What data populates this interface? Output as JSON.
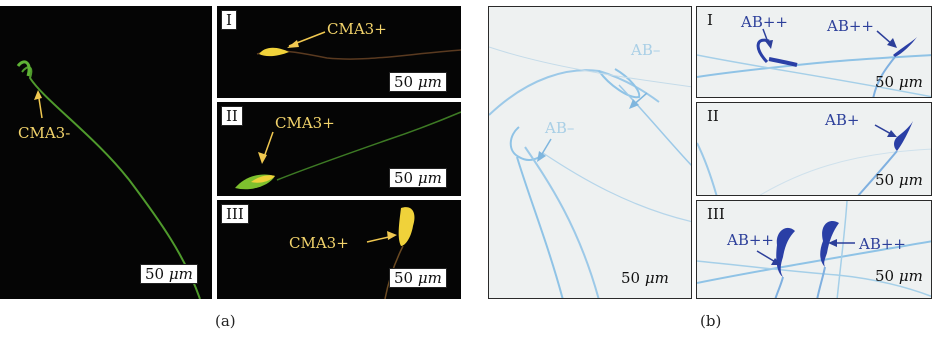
{
  "panel_a": {
    "caption": "(a)",
    "main": {
      "label": "CMA3-",
      "scale": "50",
      "unit": "μm"
    },
    "insets": [
      {
        "roman": "I",
        "label": "CMA3+",
        "scale": "50",
        "unit": "μm"
      },
      {
        "roman": "II",
        "label": "CMA3+",
        "scale": "50",
        "unit": "μm"
      },
      {
        "roman": "III",
        "label": "CMA3+",
        "scale": "50",
        "unit": "μm"
      }
    ]
  },
  "panel_b": {
    "caption": "(b)",
    "main": {
      "label_1": "AB–",
      "label_2": "AB–",
      "scale": "50",
      "unit": "μm"
    },
    "insets": [
      {
        "roman": "I",
        "label_1": "AB++",
        "label_2": "AB++",
        "scale": "50",
        "unit": "μm"
      },
      {
        "roman": "II",
        "label_1": "AB+",
        "scale": "50",
        "unit": "μm"
      },
      {
        "roman": "III",
        "label_1": "AB++",
        "label_2": "AB++",
        "scale": "50",
        "unit": "μm"
      }
    ]
  },
  "colors": {
    "fluor_green": "#4f9a2c",
    "fluor_yellow": "#f0d23a",
    "arrow_yellow": "#f0c850",
    "stain_light_blue": "#8fc3e6",
    "stain_dark_blue": "#2a3fa6"
  }
}
